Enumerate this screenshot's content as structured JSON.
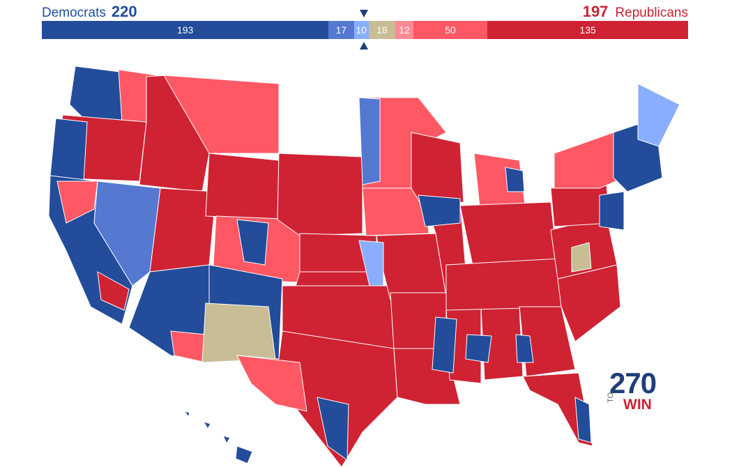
{
  "header": {
    "dem_label": "Democrats",
    "dem_total": "220",
    "rep_total": "197",
    "rep_label": "Republicans"
  },
  "bar": [
    {
      "party": "safe-dem",
      "value": 193,
      "label": "193",
      "color": "#234c9b"
    },
    {
      "party": "likely-dem",
      "value": 17,
      "label": "17",
      "color": "#5578d1"
    },
    {
      "party": "lean-dem",
      "value": 10,
      "label": "10",
      "color": "#8aaeff"
    },
    {
      "party": "tossup",
      "value": 18,
      "label": "18",
      "color": "#c8bd95"
    },
    {
      "party": "lean-rep",
      "value": 12,
      "label": "12",
      "color": "#ff8a95"
    },
    {
      "party": "likely-rep",
      "value": 50,
      "label": "50",
      "color": "#ff5865"
    },
    {
      "party": "safe-rep",
      "value": 135,
      "label": "135",
      "color": "#cf2233"
    }
  ],
  "logo": {
    "number": "270",
    "to": "TO",
    "win": "WIN"
  }
}
